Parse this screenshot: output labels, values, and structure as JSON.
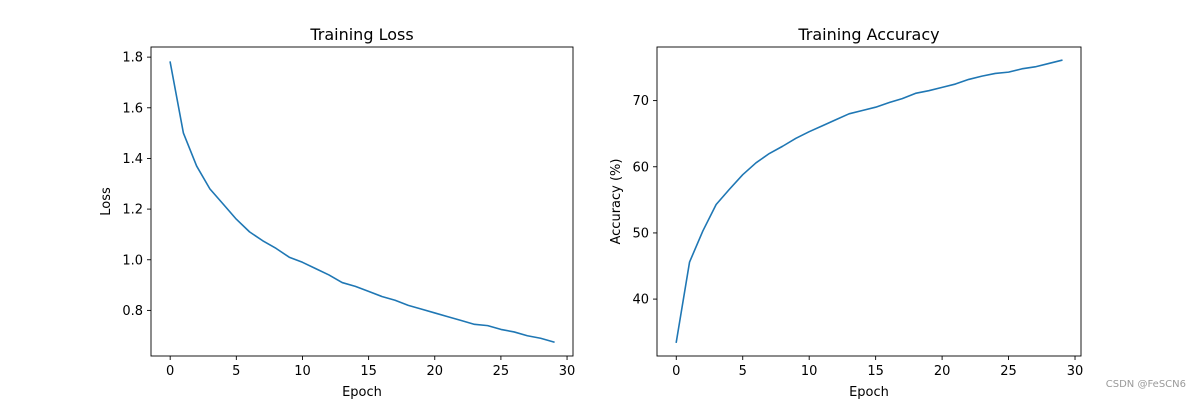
{
  "chart_data": [
    {
      "type": "line",
      "title": "Training Loss",
      "xlabel": "Epoch",
      "ylabel": "Loss",
      "xlim": [
        -1.45,
        30.45
      ],
      "ylim": [
        0.62,
        1.84
      ],
      "xticks": [
        0,
        5,
        10,
        15,
        20,
        25,
        30
      ],
      "yticks": [
        0.8,
        1.0,
        1.2,
        1.4,
        1.6,
        1.8
      ],
      "ytick_decimals": 1,
      "grid": false,
      "color": "#1f77b4",
      "x": [
        0,
        1,
        2,
        3,
        4,
        5,
        6,
        7,
        8,
        9,
        10,
        11,
        12,
        13,
        14,
        15,
        16,
        17,
        18,
        19,
        20,
        21,
        22,
        23,
        24,
        25,
        26,
        27,
        28,
        29
      ],
      "values": [
        1.78,
        1.5,
        1.37,
        1.28,
        1.22,
        1.16,
        1.11,
        1.075,
        1.045,
        1.01,
        0.99,
        0.965,
        0.94,
        0.91,
        0.895,
        0.875,
        0.855,
        0.84,
        0.82,
        0.805,
        0.79,
        0.775,
        0.76,
        0.745,
        0.74,
        0.725,
        0.715,
        0.7,
        0.69,
        0.675
      ]
    },
    {
      "type": "line",
      "title": "Training Accuracy",
      "xlabel": "Epoch",
      "ylabel": "Accuracy (%)",
      "xlim": [
        -1.45,
        30.45
      ],
      "ylim": [
        31.4,
        78.1
      ],
      "xticks": [
        0,
        5,
        10,
        15,
        20,
        25,
        30
      ],
      "yticks": [
        40,
        50,
        60,
        70
      ],
      "ytick_decimals": 0,
      "grid": false,
      "color": "#1f77b4",
      "x": [
        0,
        1,
        2,
        3,
        4,
        5,
        6,
        7,
        8,
        9,
        10,
        11,
        12,
        13,
        14,
        15,
        16,
        17,
        18,
        19,
        20,
        21,
        22,
        23,
        24,
        25,
        26,
        27,
        28,
        29
      ],
      "values": [
        33.5,
        45.6,
        50.3,
        54.3,
        56.6,
        58.8,
        60.6,
        62.0,
        63.1,
        64.3,
        65.3,
        66.2,
        67.1,
        68.0,
        68.5,
        69.0,
        69.7,
        70.3,
        71.1,
        71.5,
        72.0,
        72.5,
        73.2,
        73.7,
        74.1,
        74.3,
        74.8,
        75.1,
        75.6,
        76.1
      ]
    }
  ],
  "watermark": "CSDN @FeSCN6"
}
